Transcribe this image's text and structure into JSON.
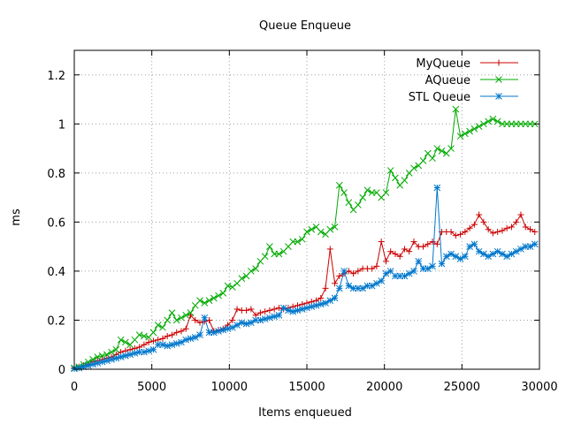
{
  "chart_data": {
    "type": "line",
    "title": "Queue Enqueue",
    "xlabel": "Items enqueued",
    "ylabel": "ms",
    "xlim": [
      0,
      30000
    ],
    "ylim": [
      0,
      1.3
    ],
    "xticks": [
      0,
      5000,
      10000,
      15000,
      20000,
      25000,
      30000
    ],
    "yticks": [
      0,
      0.2,
      0.4,
      0.6,
      0.8,
      1,
      1.2
    ],
    "xtick_labels": [
      "0",
      "5000",
      "10000",
      "15000",
      "20000",
      "25000",
      "30000"
    ],
    "ytick_labels": [
      "0",
      "0.2",
      "0.4",
      "0.6",
      "0.8",
      "1",
      "1.2"
    ],
    "grid": true,
    "legend": "top-right",
    "series": [
      {
        "name": "MyQueue",
        "color": "#cc0000",
        "marker": "plus",
        "x": [
          0,
          300,
          600,
          900,
          1200,
          1500,
          1800,
          2100,
          2400,
          2700,
          3000,
          3300,
          3600,
          3900,
          4200,
          4500,
          4800,
          5100,
          5400,
          5700,
          6000,
          6300,
          6600,
          6900,
          7200,
          7500,
          7800,
          8100,
          8400,
          8700,
          9000,
          9300,
          9600,
          9900,
          10200,
          10500,
          10800,
          11100,
          11400,
          11700,
          12000,
          12300,
          12600,
          12900,
          13200,
          13500,
          13800,
          14100,
          14400,
          14700,
          15000,
          15300,
          15600,
          15900,
          16200,
          16500,
          16800,
          17100,
          17400,
          17700,
          18000,
          18300,
          18600,
          18900,
          19200,
          19500,
          19800,
          20100,
          20400,
          20700,
          21000,
          21300,
          21600,
          21900,
          22200,
          22500,
          22800,
          23100,
          23400,
          23700,
          24000,
          24300,
          24600,
          24900,
          25200,
          25500,
          25800,
          26100,
          26400,
          26700,
          27000,
          27300,
          27600,
          27900,
          28200,
          28500,
          28800,
          29100,
          29400,
          29700
        ],
        "values": [
          0.005,
          0.01,
          0.015,
          0.02,
          0.03,
          0.035,
          0.04,
          0.045,
          0.05,
          0.06,
          0.07,
          0.075,
          0.08,
          0.085,
          0.09,
          0.1,
          0.11,
          0.115,
          0.12,
          0.125,
          0.135,
          0.14,
          0.15,
          0.155,
          0.165,
          0.22,
          0.2,
          0.19,
          0.195,
          0.2,
          0.155,
          0.16,
          0.165,
          0.18,
          0.2,
          0.245,
          0.24,
          0.24,
          0.245,
          0.22,
          0.23,
          0.235,
          0.24,
          0.245,
          0.25,
          0.245,
          0.25,
          0.255,
          0.26,
          0.265,
          0.27,
          0.275,
          0.28,
          0.29,
          0.33,
          0.49,
          0.35,
          0.38,
          0.39,
          0.4,
          0.39,
          0.4,
          0.41,
          0.41,
          0.41,
          0.42,
          0.52,
          0.44,
          0.48,
          0.47,
          0.46,
          0.49,
          0.48,
          0.52,
          0.5,
          0.5,
          0.51,
          0.52,
          0.51,
          0.56,
          0.56,
          0.56,
          0.545,
          0.55,
          0.56,
          0.575,
          0.59,
          0.63,
          0.6,
          0.57,
          0.555,
          0.56,
          0.565,
          0.575,
          0.58,
          0.6,
          0.63,
          0.58,
          0.57,
          0.56
        ]
      },
      {
        "name": "AQueue",
        "color": "#00aa00",
        "marker": "cross",
        "x": [
          0,
          300,
          600,
          900,
          1200,
          1500,
          1800,
          2100,
          2400,
          2700,
          3000,
          3300,
          3600,
          3900,
          4200,
          4500,
          4800,
          5100,
          5400,
          5700,
          6000,
          6300,
          6600,
          6900,
          7200,
          7500,
          7800,
          8100,
          8400,
          8700,
          9000,
          9300,
          9600,
          9900,
          10200,
          10500,
          10800,
          11100,
          11400,
          11700,
          12000,
          12300,
          12600,
          12900,
          13200,
          13500,
          13800,
          14100,
          14400,
          14700,
          15000,
          15300,
          15600,
          15900,
          16200,
          16500,
          16800,
          17100,
          17400,
          17700,
          18000,
          18300,
          18600,
          18900,
          19200,
          19500,
          19800,
          20100,
          20400,
          20700,
          21000,
          21300,
          21600,
          21900,
          22200,
          22500,
          22800,
          23100,
          23400,
          23700,
          24000,
          24300,
          24600,
          24900,
          25200,
          25500,
          25800,
          26100,
          26400,
          26700,
          27000,
          27300,
          27600,
          27900,
          28200,
          28500,
          28800,
          29100,
          29400,
          29700
        ],
        "values": [
          0.005,
          0.01,
          0.02,
          0.03,
          0.04,
          0.05,
          0.055,
          0.06,
          0.07,
          0.08,
          0.12,
          0.11,
          0.1,
          0.12,
          0.14,
          0.135,
          0.13,
          0.15,
          0.18,
          0.17,
          0.2,
          0.23,
          0.2,
          0.21,
          0.22,
          0.23,
          0.26,
          0.28,
          0.27,
          0.28,
          0.29,
          0.3,
          0.31,
          0.34,
          0.335,
          0.35,
          0.37,
          0.38,
          0.4,
          0.41,
          0.44,
          0.46,
          0.5,
          0.47,
          0.47,
          0.48,
          0.5,
          0.52,
          0.52,
          0.53,
          0.56,
          0.57,
          0.58,
          0.56,
          0.55,
          0.57,
          0.58,
          0.75,
          0.72,
          0.68,
          0.65,
          0.67,
          0.7,
          0.73,
          0.72,
          0.72,
          0.7,
          0.72,
          0.81,
          0.78,
          0.75,
          0.77,
          0.8,
          0.82,
          0.83,
          0.85,
          0.88,
          0.86,
          0.9,
          0.89,
          0.88,
          0.9,
          1.06,
          0.95,
          0.96,
          0.97,
          0.98,
          0.99,
          1.0,
          1.01,
          1.02,
          1.01,
          1.0,
          1.0,
          1.0,
          1.0,
          1.0,
          1.0,
          1.0,
          1.0
        ]
      },
      {
        "name": "STL Queue",
        "color": "#0077cc",
        "marker": "star",
        "x": [
          0,
          300,
          600,
          900,
          1200,
          1500,
          1800,
          2100,
          2400,
          2700,
          3000,
          3300,
          3600,
          3900,
          4200,
          4500,
          4800,
          5100,
          5400,
          5700,
          6000,
          6300,
          6600,
          6900,
          7200,
          7500,
          7800,
          8100,
          8400,
          8700,
          9000,
          9300,
          9600,
          9900,
          10200,
          10500,
          10800,
          11100,
          11400,
          11700,
          12000,
          12300,
          12600,
          12900,
          13200,
          13500,
          13800,
          14100,
          14400,
          14700,
          15000,
          15300,
          15600,
          15900,
          16200,
          16500,
          16800,
          17100,
          17400,
          17700,
          18000,
          18300,
          18600,
          18900,
          19200,
          19500,
          19800,
          20100,
          20400,
          20700,
          21000,
          21300,
          21600,
          21900,
          22200,
          22500,
          22800,
          23100,
          23400,
          23700,
          24000,
          24300,
          24600,
          24900,
          25200,
          25500,
          25800,
          26100,
          26400,
          26700,
          27000,
          27300,
          27600,
          27900,
          28200,
          28500,
          28800,
          29100,
          29400,
          29700
        ],
        "values": [
          0.002,
          0.005,
          0.01,
          0.015,
          0.02,
          0.025,
          0.03,
          0.035,
          0.04,
          0.045,
          0.05,
          0.055,
          0.06,
          0.065,
          0.07,
          0.07,
          0.075,
          0.08,
          0.1,
          0.1,
          0.095,
          0.1,
          0.105,
          0.11,
          0.12,
          0.125,
          0.13,
          0.14,
          0.21,
          0.15,
          0.15,
          0.155,
          0.16,
          0.165,
          0.17,
          0.18,
          0.19,
          0.185,
          0.19,
          0.2,
          0.2,
          0.205,
          0.21,
          0.215,
          0.22,
          0.25,
          0.24,
          0.235,
          0.24,
          0.245,
          0.25,
          0.255,
          0.26,
          0.265,
          0.27,
          0.28,
          0.29,
          0.33,
          0.4,
          0.34,
          0.33,
          0.33,
          0.33,
          0.34,
          0.34,
          0.35,
          0.36,
          0.39,
          0.4,
          0.38,
          0.38,
          0.38,
          0.39,
          0.4,
          0.44,
          0.41,
          0.41,
          0.42,
          0.74,
          0.43,
          0.46,
          0.47,
          0.46,
          0.45,
          0.46,
          0.5,
          0.51,
          0.48,
          0.47,
          0.46,
          0.47,
          0.48,
          0.47,
          0.46,
          0.47,
          0.48,
          0.49,
          0.5,
          0.5,
          0.51
        ]
      }
    ]
  }
}
